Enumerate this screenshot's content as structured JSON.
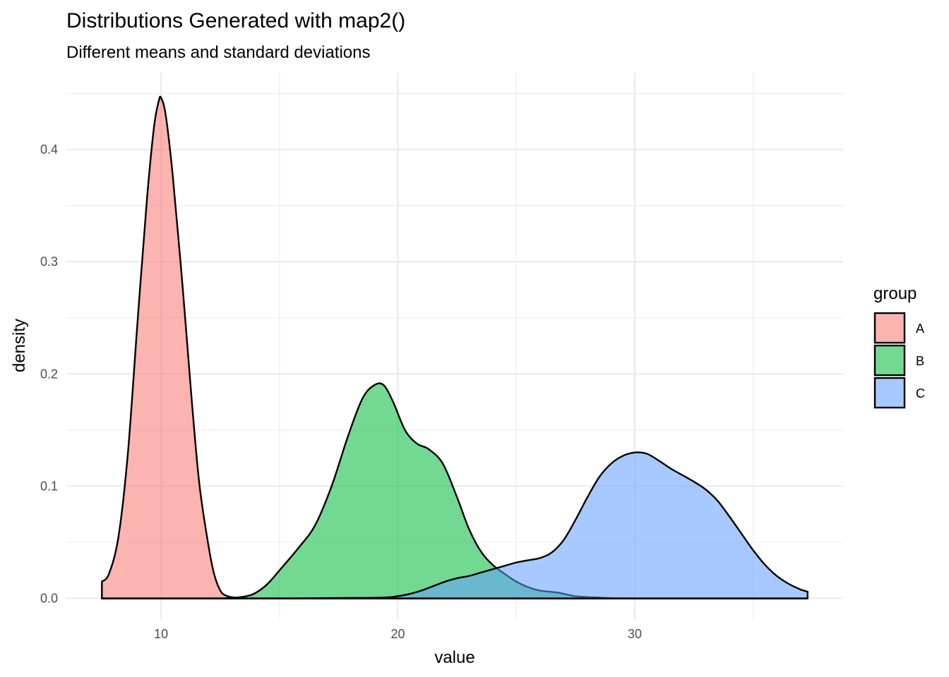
{
  "chart_data": {
    "type": "area",
    "subtype": "density",
    "title": "Distributions Generated with map2()",
    "subtitle": "Different means and standard deviations",
    "xlabel": "value",
    "ylabel": "density",
    "xlim": [
      6.0,
      38.8
    ],
    "ylim": [
      -0.0185,
      0.4685
    ],
    "x_ticks": [
      10,
      20,
      30
    ],
    "x_tick_labels": [
      "10",
      "20",
      "30"
    ],
    "x_minor_ticks": [
      15,
      25,
      35
    ],
    "y_ticks": [
      0.0,
      0.1,
      0.2,
      0.3,
      0.4
    ],
    "y_tick_labels": [
      "0.0",
      "0.1",
      "0.2",
      "0.3",
      "0.4"
    ],
    "y_minor_ticks": [
      0.05,
      0.15,
      0.25,
      0.35,
      0.45
    ],
    "grid": true,
    "legend": {
      "title": "group",
      "position": "right",
      "labels": [
        "A",
        "B",
        "C"
      ]
    },
    "fill_alpha": 0.55,
    "series": [
      {
        "name": "A",
        "color": "#F8766D",
        "x": [
          7.5,
          7.8,
          8.2,
          8.6,
          9.0,
          9.4,
          9.7,
          9.9,
          10.0,
          10.2,
          10.5,
          10.9,
          11.3,
          11.6,
          11.9,
          12.2,
          12.5,
          12.8,
          13.2,
          13.6,
          14.0,
          15.0,
          20.0,
          30.0,
          37.3
        ],
        "y": [
          0.015,
          0.022,
          0.055,
          0.13,
          0.245,
          0.355,
          0.42,
          0.443,
          0.446,
          0.43,
          0.375,
          0.28,
          0.175,
          0.105,
          0.06,
          0.025,
          0.007,
          0.002,
          0.0005,
          0.0,
          0.0,
          0.0,
          0.0,
          0.0,
          0.0
        ]
      },
      {
        "name": "B",
        "color": "#00BA38",
        "x": [
          7.5,
          12.0,
          13.0,
          13.6,
          14.0,
          14.5,
          15.0,
          15.8,
          16.5,
          17.2,
          17.9,
          18.5,
          19.0,
          19.4,
          19.8,
          20.3,
          20.8,
          21.3,
          21.9,
          22.5,
          23.0,
          23.5,
          24.0,
          24.5,
          25.0,
          25.5,
          26.0,
          26.8,
          27.5,
          28.5,
          30.0,
          37.3
        ],
        "y": [
          0.0,
          0.0,
          0.0005,
          0.002,
          0.005,
          0.013,
          0.025,
          0.045,
          0.065,
          0.1,
          0.145,
          0.178,
          0.19,
          0.19,
          0.175,
          0.15,
          0.138,
          0.133,
          0.12,
          0.09,
          0.062,
          0.042,
          0.03,
          0.022,
          0.015,
          0.01,
          0.007,
          0.005,
          0.002,
          0.0008,
          0.0,
          0.0
        ]
      },
      {
        "name": "C",
        "color": "#619CFF",
        "x": [
          7.5,
          15.0,
          19.0,
          20.0,
          20.5,
          21.0,
          21.5,
          22.0,
          22.5,
          23.0,
          23.5,
          24.0,
          24.5,
          25.0,
          25.5,
          26.0,
          26.5,
          27.0,
          27.5,
          28.0,
          28.5,
          29.0,
          29.5,
          30.0,
          30.5,
          31.0,
          31.5,
          32.0,
          32.5,
          33.0,
          33.5,
          34.0,
          34.5,
          35.0,
          35.5,
          36.0,
          36.5,
          37.0,
          37.3
        ],
        "y": [
          0.0,
          0.0,
          0.0005,
          0.002,
          0.004,
          0.007,
          0.011,
          0.015,
          0.018,
          0.02,
          0.023,
          0.026,
          0.029,
          0.032,
          0.034,
          0.036,
          0.041,
          0.052,
          0.07,
          0.09,
          0.108,
          0.12,
          0.127,
          0.13,
          0.129,
          0.123,
          0.116,
          0.11,
          0.104,
          0.097,
          0.087,
          0.073,
          0.058,
          0.043,
          0.03,
          0.02,
          0.013,
          0.008,
          0.006
        ]
      }
    ]
  }
}
